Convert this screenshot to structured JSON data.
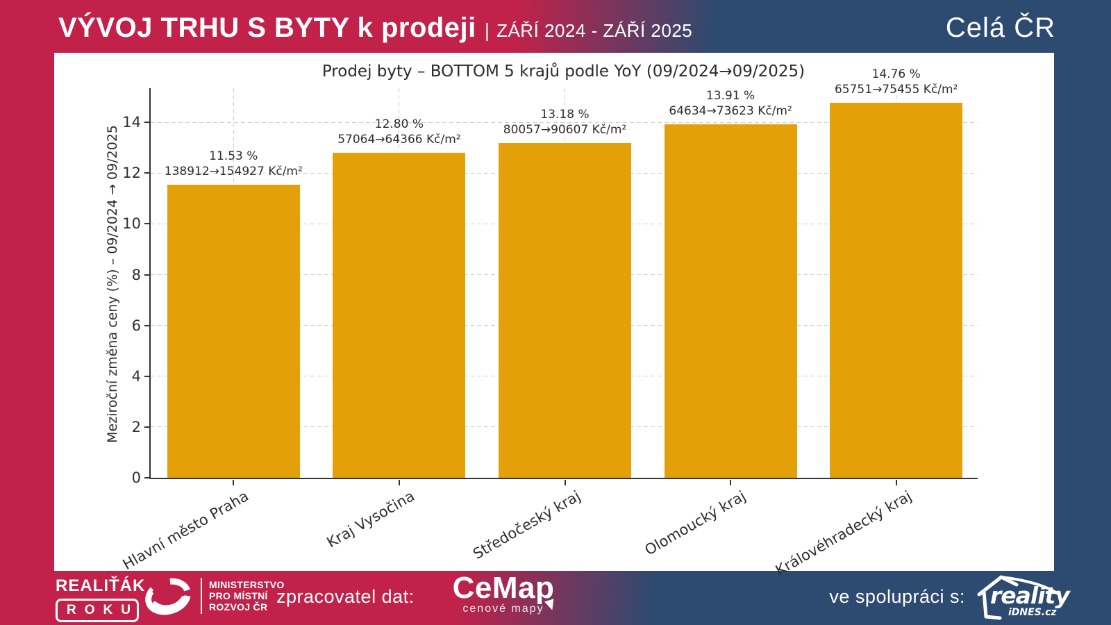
{
  "header": {
    "title": "VÝVOJ TRHU S BYTY k prodeji",
    "separator": "|",
    "period": "ZÁŘÍ 2024 - ZÁŘÍ 2025",
    "region": "Celá ČR"
  },
  "chart_data": {
    "type": "bar",
    "title": "Prodej byty – BOTTOM 5 krajů podle YoY (09/2024→09/2025)",
    "ylabel": "Meziroční změna ceny (%) – 09/2024 → 09/2025",
    "xlabel": "",
    "categories": [
      "Hlavní město Praha",
      "Kraj Vysočina",
      "Středočeský kraj",
      "Olomoucký kraj",
      "Královéhradecký kraj"
    ],
    "values": [
      11.53,
      12.8,
      13.18,
      13.91,
      14.76
    ],
    "bar_labels": [
      {
        "percent": "11.53 %",
        "range": "138912→154927 Kč/m²"
      },
      {
        "percent": "12.80 %",
        "range": "57064→64366 Kč/m²"
      },
      {
        "percent": "13.18 %",
        "range": "80057→90607 Kč/m²"
      },
      {
        "percent": "13.91 %",
        "range": "64634→73623 Kč/m²"
      },
      {
        "percent": "14.76 %",
        "range": "65751→75455 Kč/m²"
      }
    ],
    "yticks": [
      0,
      2,
      4,
      6,
      8,
      10,
      12,
      14
    ],
    "ylim": [
      0,
      15.4
    ],
    "bar_color": "#e3a008",
    "grid": "dashed-horizontal-and-vertical",
    "legend": "none"
  },
  "footer": {
    "realitak": {
      "line1": "REALIŤÁK",
      "line2": "ROKU"
    },
    "ministry": {
      "line1": "MINISTERSTVO",
      "line2": "PRO MÍSTNÍ",
      "line3": "ROZVOJ ČR"
    },
    "data_label": "zpracovatel dat:",
    "cemap": {
      "name": "CeMap",
      "subtitle": "cenové mapy"
    },
    "partner_label": "ve spolupráci s:",
    "reality": {
      "name": "reality",
      "subtitle": "iDNES.cz"
    }
  },
  "colors": {
    "crimson": "#c22149",
    "navy": "#2d4a70",
    "bar_orange": "#e3a008",
    "card_white": "#ffffff",
    "chart_text": "#2e2e2e"
  }
}
